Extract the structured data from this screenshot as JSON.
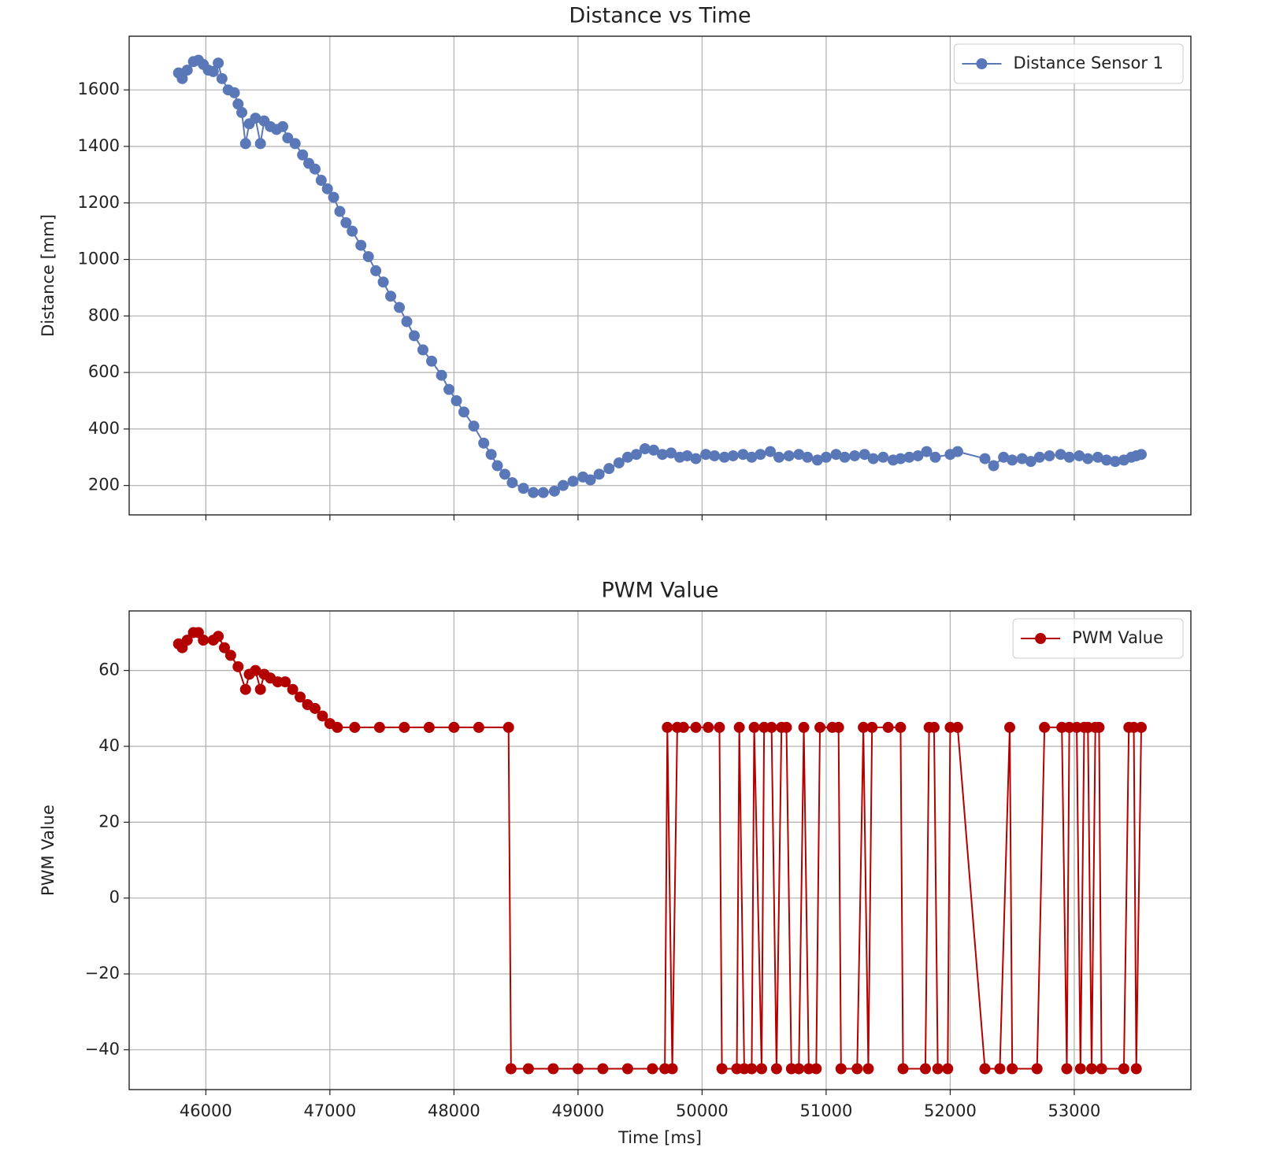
{
  "chart_data": [
    {
      "type": "line",
      "title": "Distance vs Time",
      "ylabel": "Distance [mm]",
      "x": [
        45780,
        45810,
        45850,
        45900,
        45940,
        45980,
        46020,
        46060,
        46100,
        46130,
        46180,
        46230,
        46260,
        46290,
        46320,
        46350,
        46400,
        46440,
        46470,
        46520,
        46570,
        46620,
        46660,
        46720,
        46780,
        46830,
        46880,
        46930,
        46980,
        47030,
        47080,
        47130,
        47180,
        47250,
        47310,
        47370,
        47430,
        47490,
        47560,
        47620,
        47680,
        47750,
        47820,
        47900,
        47960,
        48020,
        48080,
        48160,
        48240,
        48300,
        48350,
        48410,
        48470,
        48560,
        48640,
        48720,
        48810,
        48880,
        48960,
        49040,
        49100,
        49170,
        49250,
        49330,
        49400,
        49470,
        49540,
        49610,
        49680,
        49750,
        49820,
        49880,
        49950,
        50030,
        50100,
        50180,
        50250,
        50330,
        50400,
        50470,
        50550,
        50620,
        50700,
        50780,
        50850,
        50930,
        51000,
        51080,
        51150,
        51230,
        51310,
        51380,
        51460,
        51540,
        51600,
        51670,
        51740,
        51810,
        51880,
        52000,
        52060,
        52280,
        52350,
        52430,
        52500,
        52580,
        52650,
        52720,
        52800,
        52890,
        52960,
        53040,
        53110,
        53190,
        53260,
        53330,
        53400,
        53460,
        53500,
        53540
      ],
      "series": [
        {
          "name": "Distance Sensor 1",
          "color": "#5a78b8",
          "values": [
            1660,
            1640,
            1670,
            1700,
            1705,
            1690,
            1670,
            1665,
            1695,
            1640,
            1600,
            1590,
            1550,
            1520,
            1410,
            1480,
            1500,
            1410,
            1490,
            1470,
            1460,
            1470,
            1430,
            1410,
            1370,
            1340,
            1320,
            1280,
            1250,
            1220,
            1170,
            1130,
            1100,
            1050,
            1010,
            960,
            920,
            870,
            830,
            780,
            730,
            680,
            640,
            590,
            540,
            500,
            460,
            410,
            350,
            310,
            270,
            240,
            210,
            190,
            175,
            175,
            180,
            200,
            215,
            230,
            220,
            240,
            260,
            280,
            300,
            310,
            330,
            325,
            310,
            315,
            300,
            305,
            295,
            310,
            305,
            300,
            305,
            310,
            300,
            310,
            320,
            300,
            305,
            310,
            300,
            290,
            300,
            310,
            300,
            305,
            310,
            295,
            300,
            290,
            295,
            300,
            305,
            320,
            300,
            310,
            320,
            295,
            270,
            300,
            290,
            295,
            285,
            300,
            305,
            310,
            300,
            305,
            295,
            300,
            290,
            285,
            290,
            300,
            305,
            310
          ]
        }
      ],
      "xlim": [
        45382,
        53940
      ],
      "ylim": [
        96,
        1790
      ],
      "xticks": [
        46000,
        47000,
        48000,
        49000,
        50000,
        51000,
        52000,
        53000
      ],
      "yticks": [
        200,
        400,
        600,
        800,
        1000,
        1200,
        1400,
        1600
      ],
      "xtick_labels": false,
      "grid": true,
      "legend": "upper right"
    },
    {
      "type": "line",
      "title": "PWM Value",
      "ylabel": "PWM Value",
      "xlabel": "Time [ms]",
      "x": [
        45780,
        45810,
        45850,
        45900,
        45940,
        45980,
        46060,
        46100,
        46150,
        46200,
        46260,
        46320,
        46350,
        46400,
        46440,
        46470,
        46520,
        46580,
        46640,
        46700,
        46760,
        46820,
        46880,
        46940,
        47000,
        47060,
        47200,
        47400,
        47600,
        47800,
        48000,
        48200,
        48440,
        48460,
        48600,
        48800,
        49000,
        49200,
        49400,
        49600,
        49700,
        49720,
        49760,
        49800,
        49850,
        49950,
        50050,
        50140,
        50160,
        50280,
        50300,
        50340,
        50400,
        50420,
        50480,
        50500,
        50560,
        50600,
        50640,
        50680,
        50720,
        50780,
        50820,
        50860,
        50920,
        50950,
        51050,
        51100,
        51120,
        51250,
        51300,
        51340,
        51370,
        51500,
        51600,
        51620,
        51800,
        51830,
        51870,
        51900,
        51980,
        52000,
        52060,
        52280,
        52400,
        52480,
        52500,
        52700,
        52760,
        52900,
        52940,
        52960,
        53020,
        53050,
        53080,
        53110,
        53140,
        53170,
        53200,
        53220,
        53400,
        53440,
        53480,
        53500,
        53540
      ],
      "series": [
        {
          "name": "PWM Value",
          "color": "#b30000",
          "values": [
            67,
            66,
            68,
            70,
            70,
            68,
            68,
            69,
            66,
            64,
            61,
            55,
            59,
            60,
            55,
            59,
            58,
            57,
            57,
            55,
            53,
            51,
            50,
            48,
            46,
            45,
            45,
            45,
            45,
            45,
            45,
            45,
            45,
            -45,
            -45,
            -45,
            -45,
            -45,
            -45,
            -45,
            -45,
            45,
            -45,
            45,
            45,
            45,
            45,
            45,
            -45,
            -45,
            45,
            -45,
            -45,
            45,
            -45,
            45,
            45,
            -45,
            45,
            45,
            -45,
            -45,
            45,
            -45,
            -45,
            45,
            45,
            45,
            -45,
            -45,
            45,
            -45,
            45,
            45,
            45,
            -45,
            -45,
            45,
            45,
            -45,
            -45,
            45,
            45,
            -45,
            -45,
            45,
            -45,
            -45,
            45,
            45,
            -45,
            45,
            45,
            -45,
            45,
            45,
            -45,
            45,
            45,
            -45,
            -45,
            45,
            45,
            -45,
            45
          ]
        }
      ],
      "xlim": [
        45382,
        53940
      ],
      "ylim": [
        -50.5,
        75.7
      ],
      "xticks": [
        46000,
        47000,
        48000,
        49000,
        50000,
        51000,
        52000,
        53000
      ],
      "yticks": [
        {
          "value": -40,
          "label": "−40"
        },
        {
          "value": -20,
          "label": "−20"
        },
        0,
        20,
        40,
        60
      ],
      "xtick_labels": true,
      "grid": true,
      "legend": "upper right"
    }
  ]
}
